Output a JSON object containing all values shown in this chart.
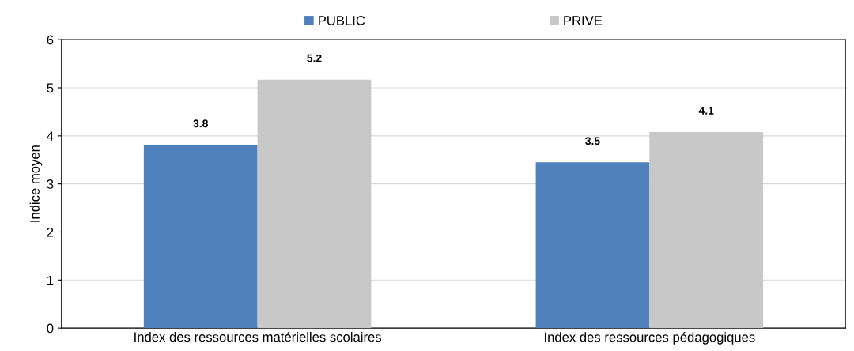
{
  "chart_data": {
    "type": "bar",
    "ylabel": "Indice moyen",
    "categories": [
      "Index des ressources matérielles scolaires",
      "Index des ressources pédagogiques"
    ],
    "series": [
      {
        "name": "PUBLIC",
        "color": "#4f81bd",
        "values": [
          3.81,
          3.45
        ],
        "value_labels": [
          "3.8",
          "3.5"
        ]
      },
      {
        "name": "PRIVE",
        "color": "#c8c8c8",
        "values": [
          5.17,
          4.08
        ],
        "value_labels": [
          "5.2",
          "4.1"
        ]
      }
    ],
    "ylim": [
      0,
      6
    ],
    "yticks": [
      0,
      1,
      2,
      3,
      4,
      5,
      6
    ],
    "grid": "y",
    "legend": "top"
  }
}
